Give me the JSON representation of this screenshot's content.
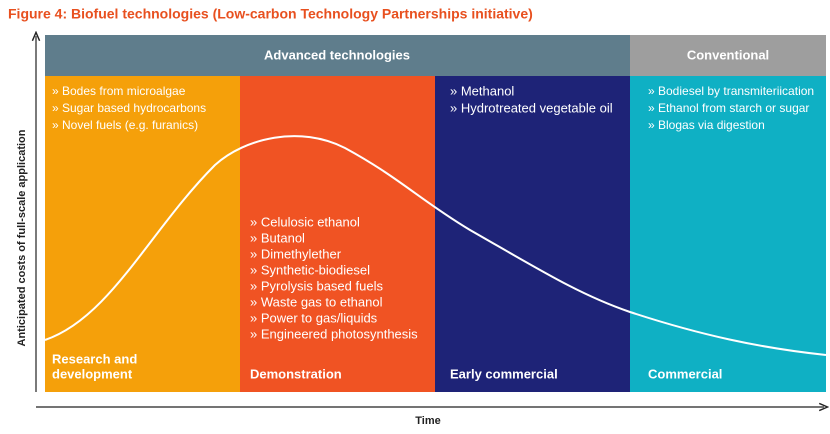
{
  "title": "Figure 4: Biofuel technologies (Low-carbon Technology Partnerships initiative)",
  "header": {
    "groups": [
      {
        "label": "Advanced technologies"
      },
      {
        "label": "Conventional"
      }
    ]
  },
  "stages": [
    {
      "label_lines": [
        "Research and",
        "development"
      ],
      "items": [
        "» Bodes from microalgae",
        "» Sugar based hydrocarbons",
        "» Novel fuels (e.g. furanics)"
      ]
    },
    {
      "label_lines": [
        "Demonstration"
      ],
      "items": [
        "» Celulosic ethanol",
        "» Butanol",
        "» Dimethylether",
        "» Synthetic-biodiesel",
        "» Pyrolysis based fuels",
        "» Waste gas to ethanol",
        "» Power to gas/liquids",
        "» Engineered photosynthesis"
      ]
    },
    {
      "label_lines": [
        "Early commercial"
      ],
      "items": [
        "» Methanol",
        "» Hydrotreated vegetable oil"
      ]
    },
    {
      "label_lines": [
        "Commercial"
      ],
      "items": [
        "» Bodiesel by transmiteriication",
        "» Ethanol from starch or sugar",
        "» Blogas via digestion"
      ]
    }
  ],
  "axes": {
    "y_label": "Anticipated costs of full-scale application",
    "x_label": "Time"
  }
}
